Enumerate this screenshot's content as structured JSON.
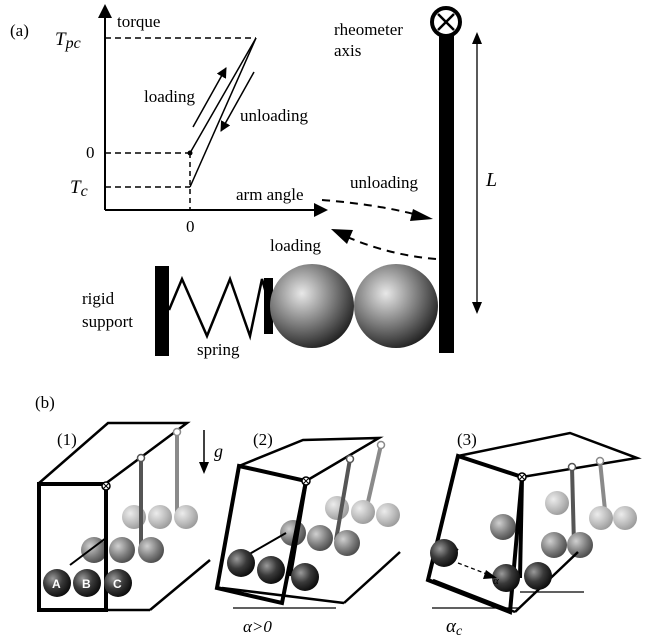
{
  "panel_a": {
    "label": "(a)",
    "graph": {
      "y_axis_label": "torque",
      "x_axis_label": "arm angle",
      "tpc_label": "T",
      "tpc_sub": "pc",
      "zero_y_label": "0",
      "tc_label": "T",
      "tc_sub": "c",
      "zero_x_label": "0",
      "loading_label": "loading",
      "unloading_label": "unloading"
    },
    "apparatus": {
      "rheometer_line1": "rheometer",
      "rheometer_line2": "axis",
      "length_label": "L",
      "unloading_label": "unloading",
      "loading_label": "loading",
      "rigid_line1": "rigid",
      "rigid_line2": "support",
      "spring_label": "spring"
    }
  },
  "panel_b": {
    "label": "(b)",
    "sub1": "(1)",
    "sub2": "(2)",
    "sub3": "(3)",
    "gravity_label": "g",
    "ball_a": "A",
    "ball_b": "B",
    "ball_c": "C",
    "alpha_pos_label": "α>0",
    "alpha_c_label": "α",
    "alpha_c_sub": "c",
    "alpha_small": "α"
  },
  "colors": {
    "ink": "#000000",
    "ball_dark": "#1a1a1a",
    "ball_mid": "#5a5a5a",
    "ball_light": "#b0b0b0"
  }
}
